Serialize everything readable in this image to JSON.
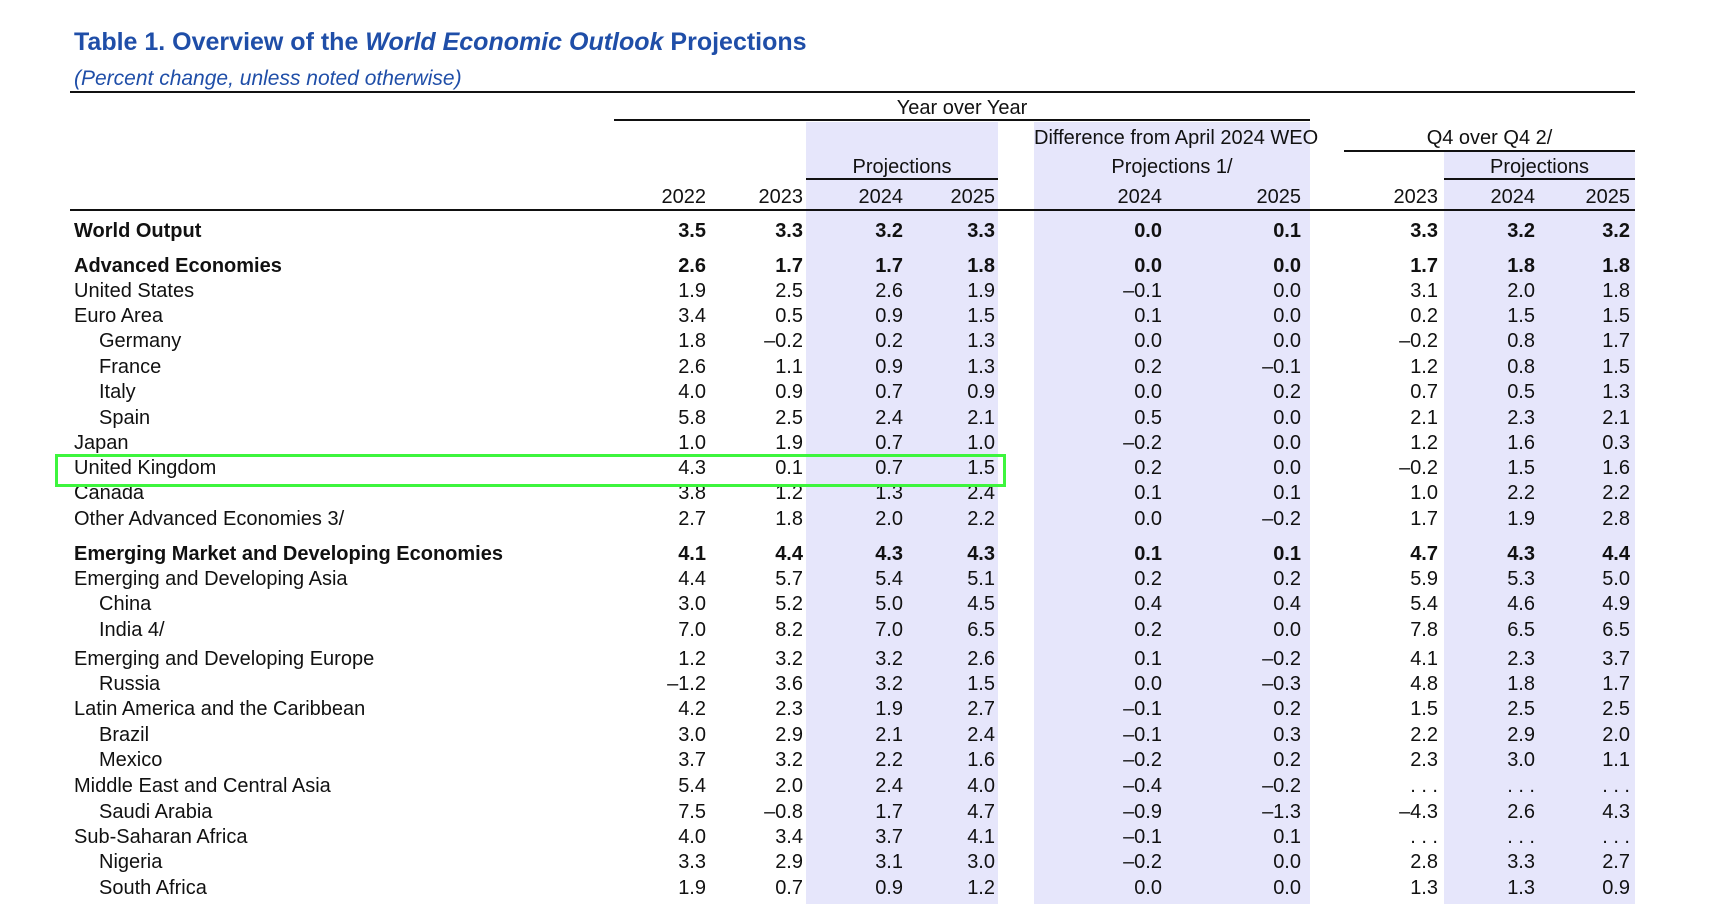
{
  "title": {
    "prefix": "Table 1. Overview of the ",
    "italic": "World Economic Outlook",
    "suffix": " Projections"
  },
  "subtitle": "(Percent change, unless noted otherwise)",
  "headers": {
    "year_over_year": "Year over Year",
    "projections": "Projections",
    "difference_line1": "Difference from April 2024 WEO",
    "difference_line2": "Projections 1/",
    "q4_over_q4": "Q4 over Q4 2/",
    "q4_projections": "Projections",
    "years": [
      "2022",
      "2023",
      "2024",
      "2025",
      "2024",
      "2025",
      "2023",
      "2024",
      "2025"
    ]
  },
  "rows": [
    {
      "label": "World Output",
      "bold": true,
      "indent": false,
      "values": [
        "3.5",
        "3.3",
        "3.2",
        "3.3",
        "0.0",
        "0.1",
        "3.3",
        "3.2",
        "3.2"
      ]
    },
    {
      "label": "Advanced Economies",
      "bold": true,
      "indent": false,
      "values": [
        "2.6",
        "1.7",
        "1.7",
        "1.8",
        "0.0",
        "0.0",
        "1.7",
        "1.8",
        "1.8"
      ]
    },
    {
      "label": "United States",
      "bold": false,
      "indent": false,
      "values": [
        "1.9",
        "2.5",
        "2.6",
        "1.9",
        "–0.1",
        "0.0",
        "3.1",
        "2.0",
        "1.8"
      ]
    },
    {
      "label": "Euro Area",
      "bold": false,
      "indent": false,
      "values": [
        "3.4",
        "0.5",
        "0.9",
        "1.5",
        "0.1",
        "0.0",
        "0.2",
        "1.5",
        "1.5"
      ]
    },
    {
      "label": "Germany",
      "bold": false,
      "indent": true,
      "values": [
        "1.8",
        "–0.2",
        "0.2",
        "1.3",
        "0.0",
        "0.0",
        "–0.2",
        "0.8",
        "1.7"
      ]
    },
    {
      "label": "France",
      "bold": false,
      "indent": true,
      "values": [
        "2.6",
        "1.1",
        "0.9",
        "1.3",
        "0.2",
        "–0.1",
        "1.2",
        "0.8",
        "1.5"
      ]
    },
    {
      "label": "Italy",
      "bold": false,
      "indent": true,
      "values": [
        "4.0",
        "0.9",
        "0.7",
        "0.9",
        "0.0",
        "0.2",
        "0.7",
        "0.5",
        "1.3"
      ]
    },
    {
      "label": "Spain",
      "bold": false,
      "indent": true,
      "values": [
        "5.8",
        "2.5",
        "2.4",
        "2.1",
        "0.5",
        "0.0",
        "2.1",
        "2.3",
        "2.1"
      ]
    },
    {
      "label": "Japan",
      "bold": false,
      "indent": false,
      "values": [
        "1.0",
        "1.9",
        "0.7",
        "1.0",
        "–0.2",
        "0.0",
        "1.2",
        "1.6",
        "0.3"
      ]
    },
    {
      "label": "United Kingdom",
      "bold": false,
      "indent": false,
      "values": [
        "4.3",
        "0.1",
        "0.7",
        "1.5",
        "0.2",
        "0.0",
        "–0.2",
        "1.5",
        "1.6"
      ]
    },
    {
      "label": "Canada",
      "bold": false,
      "indent": false,
      "values": [
        "3.8",
        "1.2",
        "1.3",
        "2.4",
        "0.1",
        "0.1",
        "1.0",
        "2.2",
        "2.2"
      ]
    },
    {
      "label": "Other Advanced Economies 3/",
      "bold": false,
      "indent": false,
      "values": [
        "2.7",
        "1.8",
        "2.0",
        "2.2",
        "0.0",
        "–0.2",
        "1.7",
        "1.9",
        "2.8"
      ]
    },
    {
      "label": "Emerging Market and Developing Economies",
      "bold": true,
      "indent": false,
      "values": [
        "4.1",
        "4.4",
        "4.3",
        "4.3",
        "0.1",
        "0.1",
        "4.7",
        "4.3",
        "4.4"
      ]
    },
    {
      "label": "Emerging and Developing Asia",
      "bold": false,
      "indent": false,
      "values": [
        "4.4",
        "5.7",
        "5.4",
        "5.1",
        "0.2",
        "0.2",
        "5.9",
        "5.3",
        "5.0"
      ]
    },
    {
      "label": "China",
      "bold": false,
      "indent": true,
      "values": [
        "3.0",
        "5.2",
        "5.0",
        "4.5",
        "0.4",
        "0.4",
        "5.4",
        "4.6",
        "4.9"
      ]
    },
    {
      "label": "India 4/",
      "bold": false,
      "indent": true,
      "values": [
        "7.0",
        "8.2",
        "7.0",
        "6.5",
        "0.2",
        "0.0",
        "7.8",
        "6.5",
        "6.5"
      ]
    },
    {
      "label": "Emerging and Developing Europe",
      "bold": false,
      "indent": false,
      "values": [
        "1.2",
        "3.2",
        "3.2",
        "2.6",
        "0.1",
        "–0.2",
        "4.1",
        "2.3",
        "3.7"
      ]
    },
    {
      "label": "Russia",
      "bold": false,
      "indent": true,
      "values": [
        "–1.2",
        "3.6",
        "3.2",
        "1.5",
        "0.0",
        "–0.3",
        "4.8",
        "1.8",
        "1.7"
      ]
    },
    {
      "label": "Latin America and the Caribbean",
      "bold": false,
      "indent": false,
      "values": [
        "4.2",
        "2.3",
        "1.9",
        "2.7",
        "–0.1",
        "0.2",
        "1.5",
        "2.5",
        "2.5"
      ]
    },
    {
      "label": "Brazil",
      "bold": false,
      "indent": true,
      "values": [
        "3.0",
        "2.9",
        "2.1",
        "2.4",
        "–0.1",
        "0.3",
        "2.2",
        "2.9",
        "2.0"
      ]
    },
    {
      "label": "Mexico",
      "bold": false,
      "indent": true,
      "values": [
        "3.7",
        "3.2",
        "2.2",
        "1.6",
        "–0.2",
        "0.2",
        "2.3",
        "3.0",
        "1.1"
      ]
    },
    {
      "label": "Middle East and Central Asia",
      "bold": false,
      "indent": false,
      "values": [
        "5.4",
        "2.0",
        "2.4",
        "4.0",
        "–0.4",
        "–0.2",
        ". . .",
        ". . .",
        ". . ."
      ]
    },
    {
      "label": "Saudi Arabia",
      "bold": false,
      "indent": true,
      "values": [
        "7.5",
        "–0.8",
        "1.7",
        "4.7",
        "–0.9",
        "–1.3",
        "–4.3",
        "2.6",
        "4.3"
      ]
    },
    {
      "label": "Sub-Saharan Africa",
      "bold": false,
      "indent": false,
      "values": [
        "4.0",
        "3.4",
        "3.7",
        "4.1",
        "–0.1",
        "0.1",
        ". . .",
        ". . .",
        ". . ."
      ]
    },
    {
      "label": "Nigeria",
      "bold": false,
      "indent": true,
      "values": [
        "3.3",
        "2.9",
        "3.1",
        "3.0",
        "–0.2",
        "0.0",
        "2.8",
        "3.3",
        "2.7"
      ]
    },
    {
      "label": "South Africa",
      "bold": false,
      "indent": true,
      "values": [
        "1.9",
        "0.7",
        "0.9",
        "1.2",
        "0.0",
        "0.0",
        "1.3",
        "1.3",
        "0.9"
      ]
    }
  ],
  "highlighted_row": "United Kingdom",
  "colors": {
    "title": "#1f4ea8",
    "shading": "#e6e6fb",
    "highlight_box": "#3df53d"
  }
}
